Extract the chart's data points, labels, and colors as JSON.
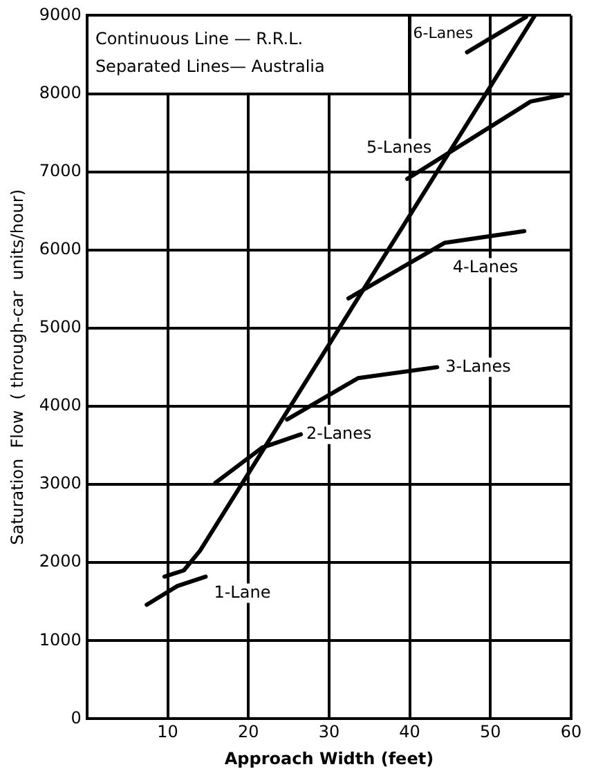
{
  "chart_data": {
    "type": "line",
    "xlabel": "Approach Width (feet)",
    "ylabel": "Saturation  Flow  ( through-car  units/hour)",
    "xlim": [
      0,
      60
    ],
    "xticks": [
      10,
      20,
      30,
      40,
      50,
      60
    ],
    "ylim": [
      0,
      9000
    ],
    "yticks": [
      0,
      1000,
      2000,
      3000,
      4000,
      5000,
      6000,
      7000,
      8000,
      9000
    ],
    "grid": true,
    "legend": false,
    "marker": "none",
    "line_style": "solid",
    "annotations": [
      "Continuous Line — R.R.L.",
      "Separated Lines— Australia"
    ],
    "series": [
      {
        "color": "#000000",
        "x": [
          9.6,
          12,
          14,
          55.5
        ],
        "values": [
          1820,
          1900,
          2150,
          9000
        ]
      },
      {
        "name": "1-Lane",
        "color": "#000000",
        "x": [
          7.4,
          11.2,
          14.7
        ],
        "values": [
          1460,
          1700,
          1820
        ]
      },
      {
        "name": "2-Lanes",
        "color": "#000000",
        "x": [
          15.9,
          21.7,
          26.5
        ],
        "values": [
          3020,
          3470,
          3640
        ]
      },
      {
        "name": "3-Lanes",
        "color": "#000000",
        "x": [
          24.8,
          32.1,
          33.6,
          43.4
        ],
        "values": [
          3830,
          4270,
          4360,
          4500
        ]
      },
      {
        "name": "4-Lanes",
        "color": "#000000",
        "x": [
          32.4,
          44.3,
          54.2
        ],
        "values": [
          5380,
          6090,
          6240
        ]
      },
      {
        "name": "5-Lanes",
        "color": "#000000",
        "x": [
          39.7,
          55,
          58.9
        ],
        "values": [
          6910,
          7900,
          7980
        ]
      },
      {
        "name": "6-Lanes",
        "color": "#000000",
        "x": [
          47.1,
          54.4
        ],
        "values": [
          8530,
          8980
        ]
      }
    ]
  }
}
